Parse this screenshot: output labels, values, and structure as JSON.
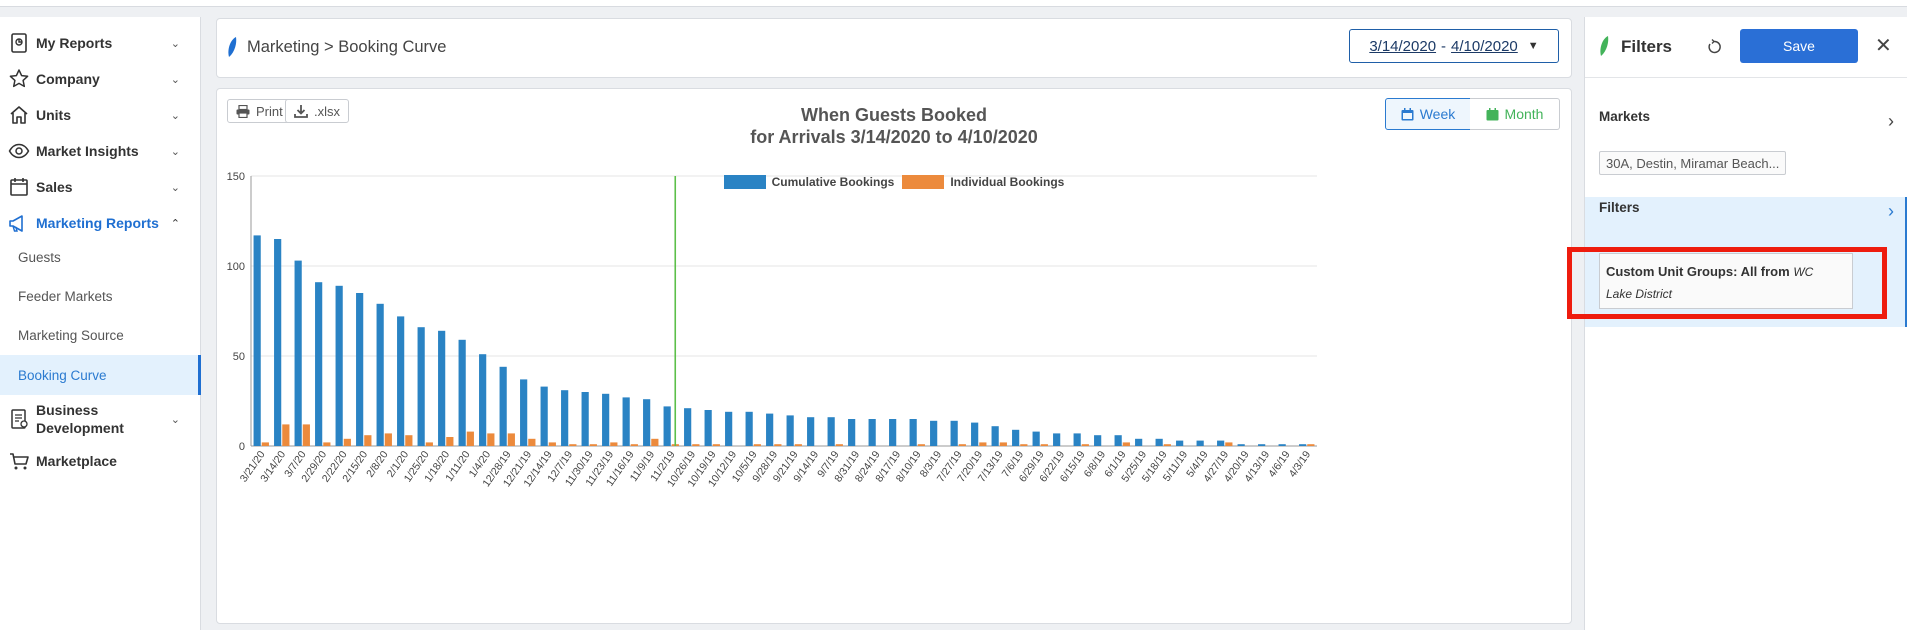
{
  "sidebar": {
    "items": [
      {
        "label": "My Reports",
        "icon": "report-icon"
      },
      {
        "label": "Company",
        "icon": "star-icon"
      },
      {
        "label": "Units",
        "icon": "home-icon"
      },
      {
        "label": "Market Insights",
        "icon": "eye-icon"
      },
      {
        "label": "Sales",
        "icon": "calendar-icon"
      },
      {
        "label": "Marketing Reports",
        "icon": "megaphone-icon"
      },
      {
        "label": "Business Development",
        "icon": "document-icon"
      },
      {
        "label": "Marketplace",
        "icon": "cart-icon"
      }
    ],
    "sub_items": [
      "Guests",
      "Feeder Markets",
      "Marketing Source",
      "Booking Curve"
    ],
    "active_sub": "Booking Curve"
  },
  "header": {
    "breadcrumb": "Marketing > Booking Curve",
    "date_start": "3/14/2020",
    "date_sep": "-",
    "date_end": "4/10/2020"
  },
  "toolbar": {
    "print_label": "Print",
    "export_label": ".xlsx",
    "week_label": "Week",
    "month_label": "Month"
  },
  "colors": {
    "cumulative": "#2a83c4",
    "individual": "#ec8a3c",
    "marker_line": "#5cbf4a",
    "accent": "#2a6fd6"
  },
  "chart_data": {
    "type": "bar",
    "title_line1": "When Guests Booked",
    "title_line2": "for Arrivals 3/14/2020 to 4/10/2020",
    "categories": [
      "3/21/20",
      "3/14/20",
      "3/7/20",
      "2/29/20",
      "2/22/20",
      "2/15/20",
      "2/8/20",
      "2/1/20",
      "1/25/20",
      "1/18/20",
      "1/11/20",
      "1/4/20",
      "12/28/19",
      "12/21/19",
      "12/14/19",
      "12/7/19",
      "11/30/19",
      "11/23/19",
      "11/16/19",
      "11/9/19",
      "11/2/19",
      "10/26/19",
      "10/19/19",
      "10/12/19",
      "10/5/19",
      "9/28/19",
      "9/21/19",
      "9/14/19",
      "9/7/19",
      "8/31/19",
      "8/24/19",
      "8/17/19",
      "8/10/19",
      "8/3/19",
      "7/27/19",
      "7/20/19",
      "7/13/19",
      "7/6/19",
      "6/29/19",
      "6/22/19",
      "6/15/19",
      "6/8/19",
      "6/1/19",
      "5/25/19",
      "5/18/19",
      "5/11/19",
      "5/4/19",
      "4/27/19",
      "4/20/19",
      "4/13/19",
      "4/6/19",
      "4/3/19"
    ],
    "series": [
      {
        "name": "Cumulative Bookings",
        "values": [
          117,
          115,
          103,
          91,
          89,
          85,
          79,
          72,
          66,
          64,
          59,
          51,
          44,
          37,
          33,
          31,
          30,
          29,
          27,
          26,
          22,
          21,
          20,
          19,
          19,
          18,
          17,
          16,
          16,
          15,
          15,
          15,
          15,
          14,
          14,
          13,
          11,
          9,
          8,
          7,
          7,
          6,
          6,
          4,
          4,
          3,
          3,
          3,
          1,
          1,
          1,
          1
        ]
      },
      {
        "name": "Individual Bookings",
        "values": [
          2,
          12,
          12,
          2,
          4,
          6,
          7,
          6,
          2,
          5,
          8,
          7,
          7,
          4,
          2,
          1,
          1,
          2,
          1,
          4,
          1,
          1,
          1,
          0,
          1,
          1,
          1,
          0,
          1,
          0,
          0,
          0,
          1,
          0,
          1,
          2,
          2,
          1,
          1,
          0,
          1,
          0,
          2,
          0,
          1,
          0,
          0,
          2,
          0,
          0,
          0,
          1
        ]
      }
    ],
    "ylim": [
      0,
      150
    ],
    "yticks": [
      0,
      50,
      100,
      150
    ],
    "marker_category": "11/2/19"
  },
  "filters": {
    "title": "Filters",
    "save_label": "Save",
    "markets_title": "Markets",
    "markets_value": "30A, Destin, Miramar Beach...",
    "filters_title": "Filters",
    "unit_group_label": "Custom Unit Groups: All from",
    "unit_group_from": "WC",
    "unit_group_value": "Lake District"
  }
}
